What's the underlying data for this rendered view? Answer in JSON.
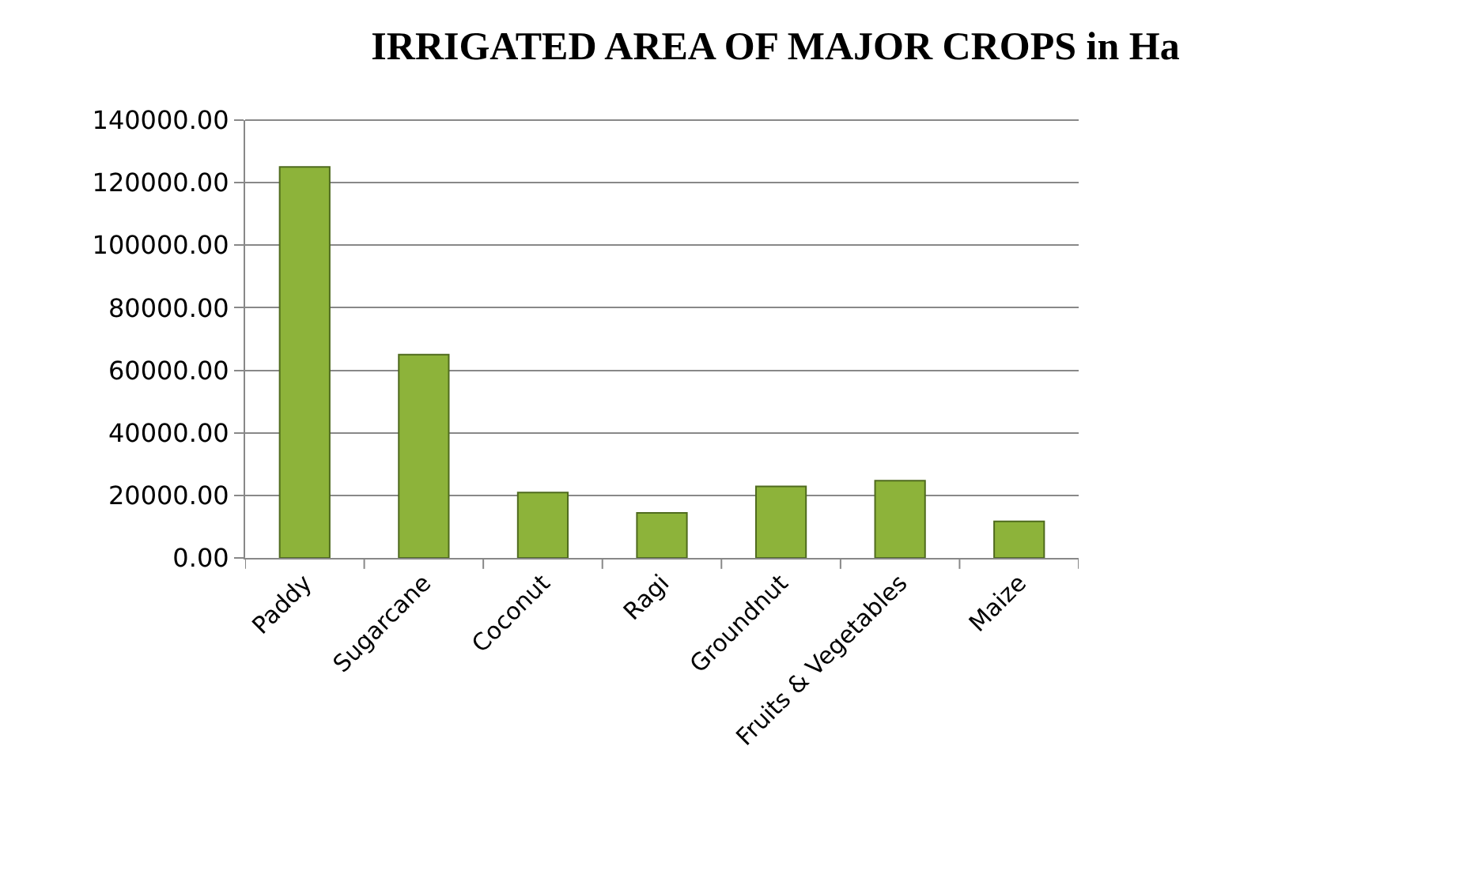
{
  "chart_data": {
    "type": "bar",
    "title": "IRRIGATED AREA OF MAJOR CROPS in Ha",
    "categories": [
      "Paddy",
      "Sugarcane",
      "Coconut",
      "Ragi",
      "Groundnut",
      "Fruits & Vegetables",
      "Maize"
    ],
    "values": [
      125000,
      65000,
      20900,
      14400,
      22900,
      24700,
      11700
    ],
    "color": "#8db33a",
    "ylim": [
      0,
      140000
    ],
    "yticks": [
      {
        "value": 0,
        "label": "0.00"
      },
      {
        "value": 20000,
        "label": "20000.00"
      },
      {
        "value": 40000,
        "label": "40000.00"
      },
      {
        "value": 60000,
        "label": "60000.00"
      },
      {
        "value": 80000,
        "label": "80000.00"
      },
      {
        "value": 100000,
        "label": "100000.00"
      },
      {
        "value": 120000,
        "label": "120000.00"
      },
      {
        "value": 140000,
        "label": "140000.00"
      }
    ],
    "grid": "y"
  }
}
